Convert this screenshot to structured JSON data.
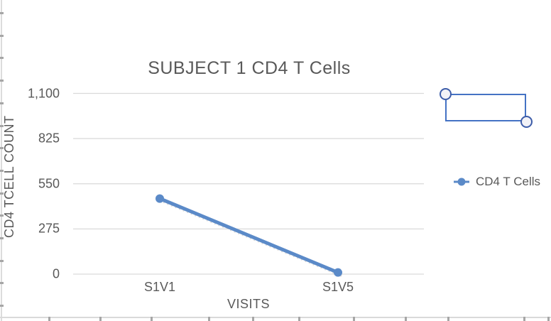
{
  "colors": {
    "text": "#595959",
    "grid": "#d9d9d9",
    "series": "#5b8ac8",
    "shape_border": "#4472C4",
    "shape_handle_border": "#3d5da9",
    "ruler_line": "#d9d9d9",
    "ruler_tick": "#a6a6a6"
  },
  "chart_data": {
    "type": "line",
    "title": "SUBJECT 1 CD4 T Cells",
    "categories": [
      "S1V1",
      "S1V5"
    ],
    "series": [
      {
        "name": "CD4 T Cells",
        "values": [
          460,
          10
        ]
      }
    ],
    "xlabel": "VISITS",
    "ylabel": "CD4 TCELL COUNT",
    "ylim": [
      0,
      1100
    ],
    "yticks": [
      0,
      275,
      550,
      825,
      1100
    ],
    "ytick_labels": [
      "0",
      "275",
      "550",
      "825",
      "1,100"
    ],
    "grid": true,
    "legend_position": "right",
    "marker": "circle"
  },
  "shape": {
    "type": "rectangle-with-endpoint-handles"
  }
}
